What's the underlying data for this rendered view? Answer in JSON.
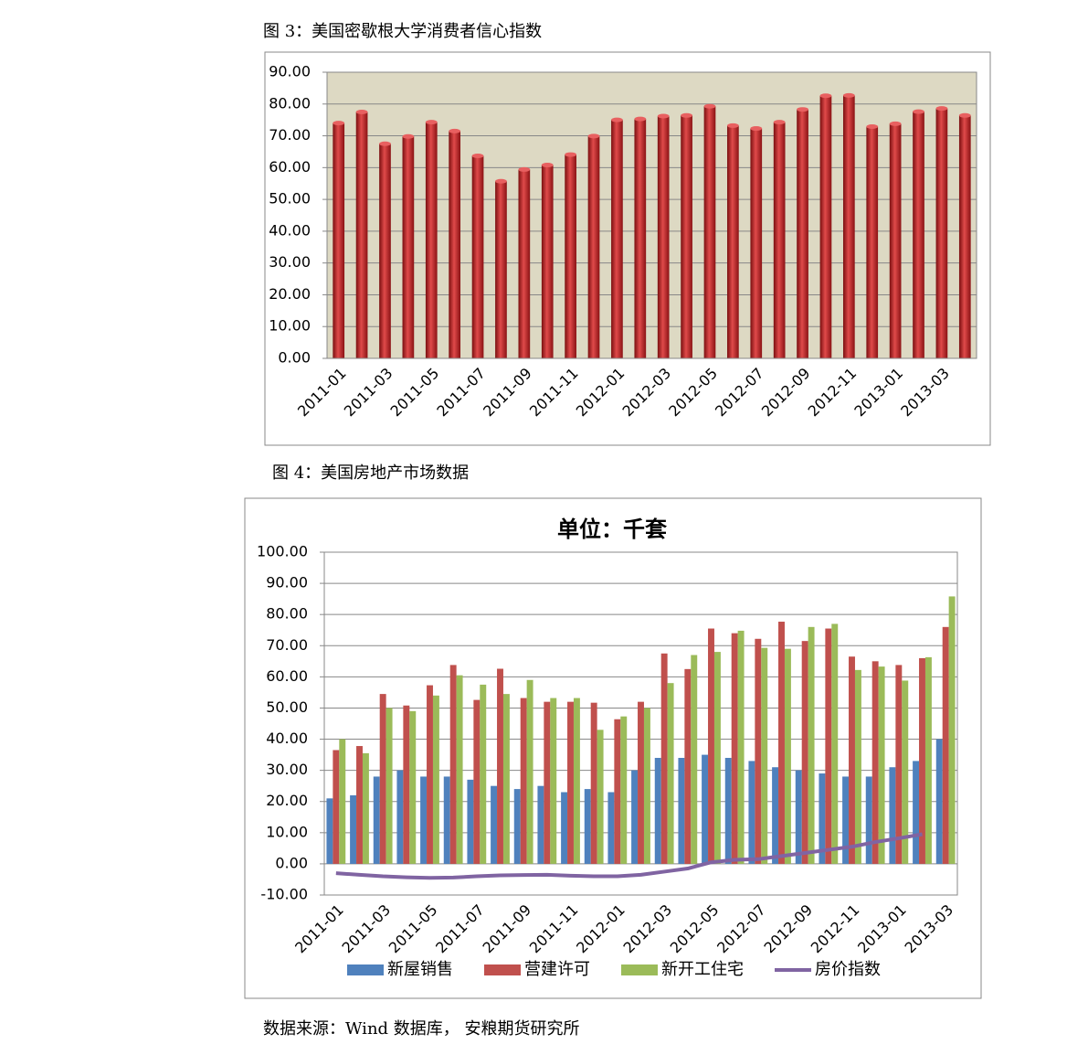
{
  "captions": [
    "图 3：美国密歇根大学消费者信心指数",
    "图 4：美国房地产市场数据"
  ],
  "source": "数据来源：Wind 数据库， 安粮期货研究所",
  "chart_data": [
    {
      "type": "bar",
      "categories": [
        "2011-01",
        null,
        "2011-03",
        null,
        "2011-05",
        null,
        "2011-07",
        null,
        "2011-09",
        null,
        "2011-11",
        null,
        "2012-01",
        null,
        "2012-03",
        null,
        "2012-05",
        null,
        "2012-07",
        null,
        "2012-09",
        null,
        "2012-11",
        null,
        "2013-01",
        null,
        "2013-03",
        null
      ],
      "values": [
        74.0,
        77.5,
        67.5,
        69.8,
        74.3,
        71.5,
        63.7,
        55.7,
        59.4,
        60.8,
        64.1,
        69.9,
        75.0,
        75.3,
        76.2,
        76.4,
        79.3,
        73.2,
        72.3,
        74.3,
        78.3,
        82.6,
        82.7,
        72.9,
        73.8,
        77.6,
        78.6,
        76.4
      ],
      "color": "#c0282a",
      "ylim": [
        0,
        90
      ],
      "yticks": [
        {
          "value": 0,
          "label": "0.00"
        },
        {
          "value": 10,
          "label": "10.00"
        },
        {
          "value": 20,
          "label": "20.00"
        },
        {
          "value": 30,
          "label": "30.00"
        },
        {
          "value": 40,
          "label": "40.00"
        },
        {
          "value": 50,
          "label": "50.00"
        },
        {
          "value": 60,
          "label": "60.00"
        },
        {
          "value": 70,
          "label": "70.00"
        },
        {
          "value": 80,
          "label": "80.00"
        },
        {
          "value": 90,
          "label": "90.00"
        }
      ],
      "grid": true
    },
    {
      "type": "bar_line",
      "title": "单位：千套",
      "categories": [
        "2011-01",
        null,
        "2011-03",
        null,
        "2011-05",
        null,
        "2011-07",
        null,
        "2011-09",
        null,
        "2011-11",
        null,
        "2012-01",
        null,
        "2012-03",
        null,
        "2012-05",
        null,
        "2012-07",
        null,
        "2012-09",
        null,
        "2012-11",
        null,
        "2013-01",
        null,
        "2013-03"
      ],
      "series": [
        {
          "name": "新屋销售",
          "color": "#4f81bd",
          "kind": "bar",
          "values": [
            21,
            22,
            28,
            30,
            28,
            28,
            27,
            25,
            24,
            25,
            23,
            24,
            23,
            30,
            34,
            34,
            35,
            34,
            33,
            31,
            30,
            29,
            28,
            28,
            31,
            33,
            40
          ]
        },
        {
          "name": "营建许可",
          "color": "#c0504d",
          "kind": "bar",
          "values": [
            36.5,
            37.8,
            54.5,
            50.8,
            57.3,
            63.8,
            52.6,
            62.6,
            53.2,
            52.0,
            52.0,
            51.7,
            46.4,
            52.0,
            67.5,
            62.5,
            75.5,
            74.0,
            72.2,
            77.7,
            71.5,
            75.5,
            66.5,
            65.0,
            63.8,
            66.0,
            76.0
          ]
        },
        {
          "name": "新开工住宅",
          "color": "#9bbb59",
          "kind": "bar",
          "values": [
            40.0,
            35.5,
            50.0,
            49.0,
            54.0,
            60.5,
            57.5,
            54.5,
            59.0,
            53.2,
            53.2,
            43.0,
            47.3,
            50.0,
            58.0,
            67.0,
            68.0,
            74.8,
            69.3,
            69.0,
            76.0,
            77.0,
            62.2,
            63.3,
            58.8,
            66.3,
            85.8
          ]
        },
        {
          "name": "房价指数",
          "color": "#8064a2",
          "kind": "line",
          "values": [
            -3.0,
            -3.5,
            -4.0,
            -4.3,
            -4.5,
            -4.4,
            -4.0,
            -3.7,
            -3.6,
            -3.5,
            -3.8,
            -4.0,
            -4.0,
            -3.5,
            -2.5,
            -1.5,
            0.5,
            1.3,
            1.5,
            2.5,
            3.5,
            4.5,
            5.5,
            7.0,
            8.2,
            9.5,
            null
          ]
        }
      ],
      "ylim": [
        -10,
        100
      ],
      "yticks": [
        {
          "value": -10,
          "label": "-10.00"
        },
        {
          "value": 0,
          "label": "0.00"
        },
        {
          "value": 10,
          "label": "10.00"
        },
        {
          "value": 20,
          "label": "20.00"
        },
        {
          "value": 30,
          "label": "30.00"
        },
        {
          "value": 40,
          "label": "40.00"
        },
        {
          "value": 50,
          "label": "50.00"
        },
        {
          "value": 60,
          "label": "60.00"
        },
        {
          "value": 70,
          "label": "70.00"
        },
        {
          "value": 80,
          "label": "80.00"
        },
        {
          "value": 90,
          "label": "90.00"
        },
        {
          "value": 100,
          "label": "100.00"
        }
      ],
      "grid": true,
      "legend": "bottom"
    }
  ]
}
